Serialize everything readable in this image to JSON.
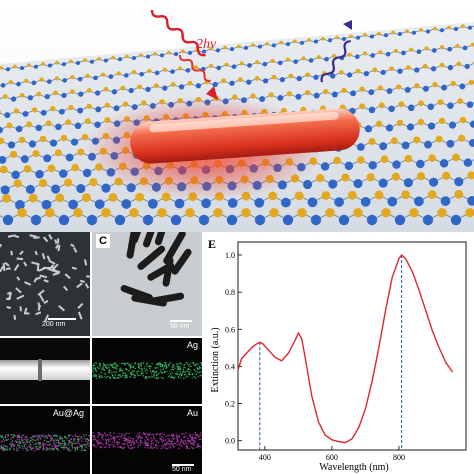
{
  "figure": {
    "schematic": {
      "photon_label": "2hν"
    },
    "panel_b": {
      "scale_bar": "200 nm"
    },
    "panel_c": {
      "label": "C",
      "scale_bar": "50 nm"
    },
    "panel_d": {
      "labels": [
        "Ag",
        "Au@Ag",
        "Au"
      ],
      "scale_bar": "50 nm"
    },
    "panel_e": {
      "label": "E"
    }
  },
  "colors": {
    "sulfur_atom": "#e3a81c",
    "metal_atom": "#2f66c8",
    "bond": "#6a7a8a",
    "nanorod_glow": "#e8302a",
    "excitation_wave": "#d8202a",
    "emission_wave": "#3a2a8a",
    "spectrum_line": "#e0282a",
    "marker_line": "#2050b0",
    "ag_map": "#3cc86a",
    "au_map": "#c040c0"
  },
  "chart_data": {
    "type": "line",
    "title": "",
    "xlabel": "Wavelength (nm)",
    "ylabel": "Extinction (a.u.)",
    "xlim": [
      320,
      1000
    ],
    "ylim": [
      -0.05,
      1.07
    ],
    "x_ticks": [
      "400",
      "600",
      "800"
    ],
    "y_ticks": [
      "0.0",
      "0.2",
      "0.4",
      "0.6",
      "0.8",
      "1.0"
    ],
    "markers": [
      {
        "x": 385,
        "label": ""
      },
      {
        "x": 808,
        "label": ""
      }
    ],
    "series": [
      {
        "name": "",
        "x": [
          320,
          330,
          345,
          360,
          375,
          385,
          395,
          410,
          430,
          450,
          470,
          490,
          500,
          510,
          520,
          540,
          560,
          580,
          600,
          620,
          640,
          660,
          680,
          700,
          720,
          740,
          760,
          780,
          800,
          808,
          820,
          840,
          860,
          880,
          900,
          920,
          940,
          960
        ],
        "y": [
          0.38,
          0.44,
          0.47,
          0.5,
          0.52,
          0.53,
          0.52,
          0.49,
          0.45,
          0.43,
          0.47,
          0.54,
          0.58,
          0.55,
          0.45,
          0.24,
          0.1,
          0.03,
          0.005,
          -0.005,
          -0.01,
          0.01,
          0.07,
          0.17,
          0.32,
          0.5,
          0.7,
          0.88,
          0.98,
          1.0,
          0.98,
          0.91,
          0.81,
          0.7,
          0.59,
          0.5,
          0.42,
          0.37
        ]
      }
    ]
  }
}
